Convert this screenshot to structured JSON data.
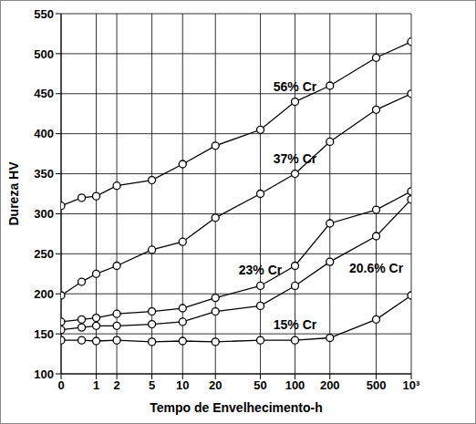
{
  "chart_data": {
    "type": "line",
    "x_label": "Tempo de Envelhecimento-h",
    "y_label": "Dureza HV",
    "x": [
      0,
      0.5,
      1,
      2,
      5,
      10,
      20,
      50,
      100,
      200,
      500,
      1000
    ],
    "series": [
      {
        "name": "56% Cr",
        "color": "#000000",
        "values": [
          310,
          320,
          322,
          335,
          342,
          362,
          385,
          405,
          440,
          460,
          495,
          515
        ]
      },
      {
        "name": "37% Cr",
        "color": "#000000",
        "values": [
          198,
          215,
          225,
          235,
          255,
          265,
          295,
          325,
          350,
          390,
          430,
          450
        ]
      },
      {
        "name": "23% Cr",
        "color": "#000000",
        "values": [
          165,
          168,
          170,
          175,
          178,
          182,
          195,
          210,
          235,
          288,
          305,
          328
        ]
      },
      {
        "name": "20.6% Cr",
        "color": "#000000",
        "values": [
          155,
          158,
          160,
          160,
          162,
          165,
          178,
          185,
          210,
          240,
          272,
          318
        ]
      },
      {
        "name": "15% Cr",
        "color": "#000000",
        "values": [
          142,
          142,
          141,
          142,
          140,
          141,
          140,
          142,
          142,
          145,
          168,
          198
        ]
      }
    ],
    "xlim": [
      0,
      1000
    ],
    "xticks": [
      0,
      1,
      2,
      5,
      10,
      20,
      50,
      100,
      200,
      500,
      {
        "value": 1000,
        "label": "10³"
      }
    ],
    "ylim": [
      100,
      550
    ],
    "yticks": [
      100,
      150,
      200,
      250,
      300,
      350,
      400,
      450,
      500,
      550
    ],
    "log": "x",
    "grid": true,
    "marker": "circle"
  }
}
